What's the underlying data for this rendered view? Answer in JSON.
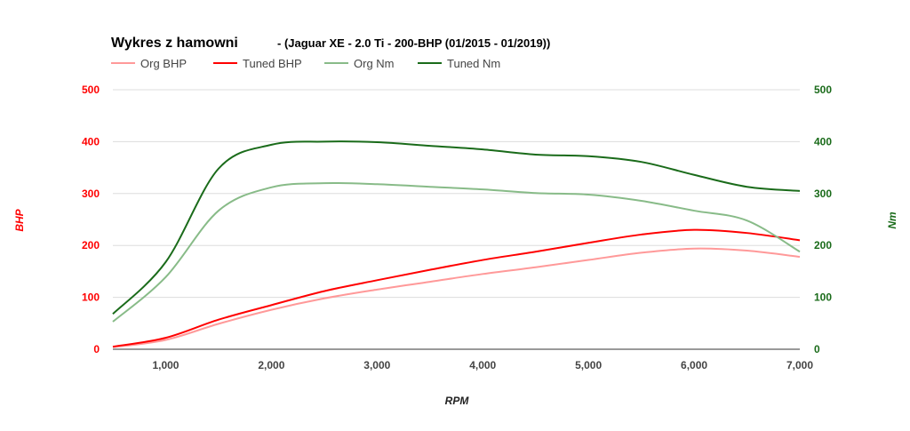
{
  "chart_data": {
    "type": "line",
    "title": "Wykres z hamowni",
    "subtitle": "- (Jaguar XE - 2.0 Ti - 200-BHP (01/2015 - 01/2019))",
    "xlabel": "RPM",
    "ylabel_left": "BHP",
    "ylabel_right": "Nm",
    "xlim": [
      500,
      7000
    ],
    "ylim_left": [
      0,
      500
    ],
    "ylim_right": [
      0,
      500
    ],
    "x_ticks": [
      "1,000",
      "2,000",
      "3,000",
      "4,000",
      "5,000",
      "6,000",
      "7,000"
    ],
    "x_tick_values": [
      1000,
      2000,
      3000,
      4000,
      5000,
      6000,
      7000
    ],
    "y_ticks_left": [
      "0",
      "100",
      "200",
      "300",
      "400",
      "500"
    ],
    "y_ticks_right": [
      "0",
      "100",
      "200",
      "300",
      "400",
      "500"
    ],
    "legend_position": "top-left",
    "grid": true,
    "x": [
      500,
      1000,
      1500,
      2000,
      2500,
      3000,
      3500,
      4000,
      4500,
      5000,
      5500,
      6000,
      6500,
      7000
    ],
    "series": [
      {
        "name": "Org BHP",
        "axis": "left",
        "color": "#ff9999",
        "values": [
          4,
          18,
          49,
          76,
          98,
          115,
          130,
          145,
          158,
          172,
          186,
          194,
          190,
          178
        ]
      },
      {
        "name": "Tuned BHP",
        "axis": "left",
        "color": "#ff0000",
        "values": [
          5,
          22,
          57,
          85,
          112,
          133,
          153,
          172,
          188,
          205,
          221,
          230,
          224,
          210
        ]
      },
      {
        "name": "Org Nm",
        "axis": "right",
        "color": "#88bb88",
        "values": [
          53,
          139,
          267,
          312,
          320,
          318,
          313,
          308,
          301,
          298,
          286,
          267,
          248,
          188
        ]
      },
      {
        "name": "Tuned Nm",
        "axis": "right",
        "color": "#1a6b1a",
        "values": [
          68,
          168,
          348,
          394,
          400,
          399,
          392,
          385,
          375,
          372,
          361,
          336,
          313,
          305
        ]
      }
    ],
    "left_axis_color": "#ff0000",
    "right_axis_color": "#1a6b1a"
  }
}
